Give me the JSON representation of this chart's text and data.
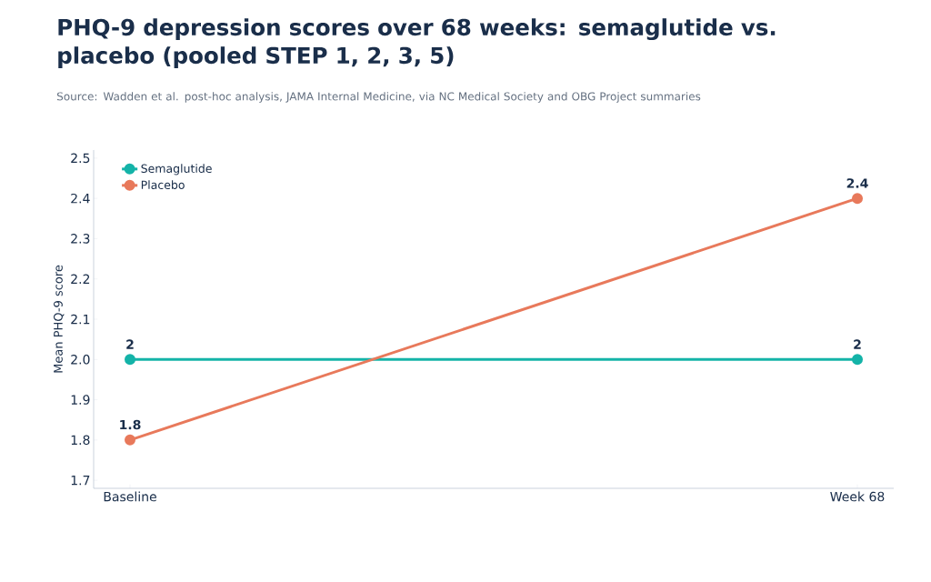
{
  "chart_data": {
    "type": "line",
    "title": "PHQ-9 depression scores over 68 weeks: semaglutide vs. placebo (pooled STEP 1, 2, 3, 5)",
    "subtitle": "Source: Wadden et al. post-hoc analysis, JAMA Internal Medicine, via NC Medical Society and OBG Project summaries",
    "ylabel": "Mean PHQ-9 score",
    "categories": [
      "Baseline",
      "Week 68"
    ],
    "series": [
      {
        "name": "Semaglutide",
        "color": "#14b3a8",
        "values": [
          2,
          2
        ]
      },
      {
        "name": "Placebo",
        "color": "#e8795b",
        "values": [
          1.8,
          2.4
        ]
      }
    ],
    "ylim": [
      1.68,
      2.52
    ],
    "yticks": [
      1.7,
      1.8,
      1.9,
      {
        "value": 2,
        "label": "2.0"
      },
      2.1,
      2.2,
      2.3,
      2.4,
      2.5
    ],
    "grid": false,
    "legend": "top left",
    "marker": "circle",
    "line_style": "solid",
    "data_labels": true
  }
}
